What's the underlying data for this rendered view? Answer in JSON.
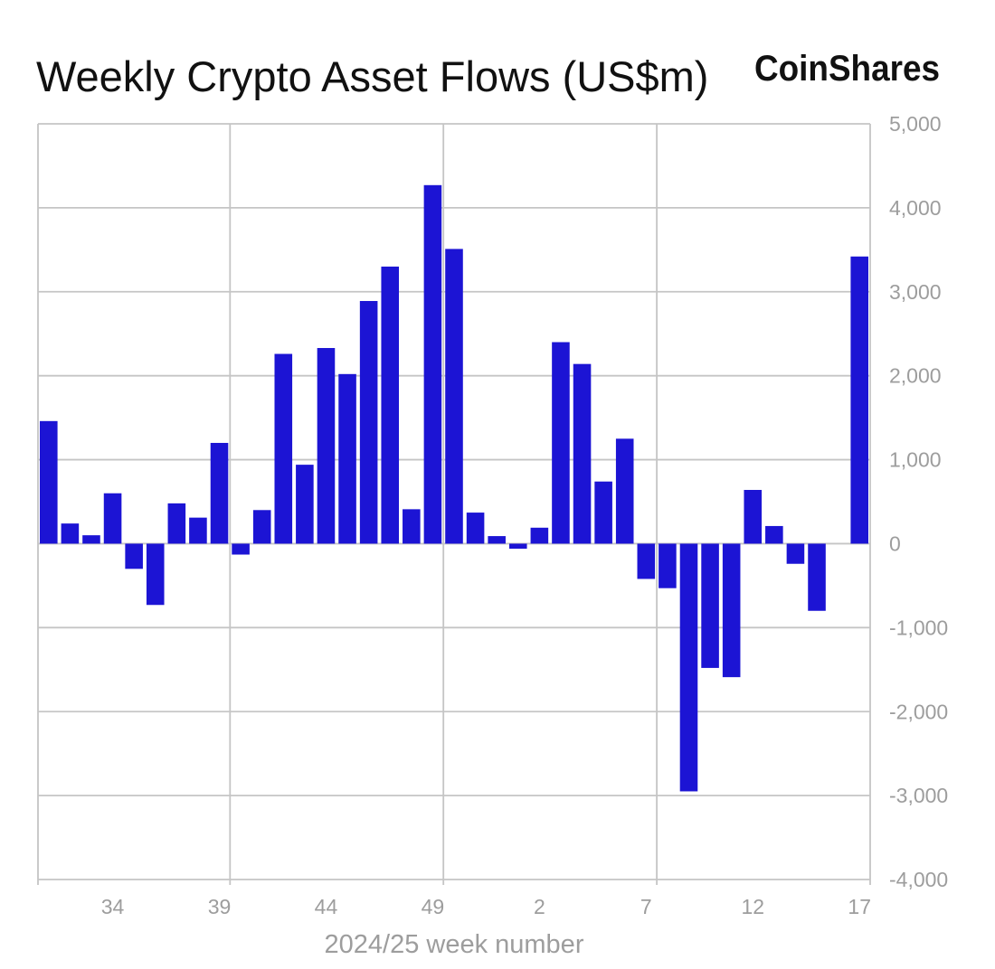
{
  "branding": {
    "logo": "CoinShares"
  },
  "colors": {
    "bar": "#1c14d4",
    "grid": "#c5c5c5",
    "tick_text": "#9d9d9d",
    "text": "#111111"
  },
  "chart_data": {
    "type": "bar",
    "title": "Weekly Crypto Asset Flows (US$m)",
    "xlabel": "2024/25 week number",
    "categories": [
      31,
      32,
      33,
      34,
      35,
      36,
      37,
      38,
      39,
      40,
      41,
      42,
      43,
      44,
      45,
      46,
      47,
      48,
      49,
      50,
      51,
      52,
      1,
      2,
      3,
      4,
      5,
      6,
      7,
      8,
      9,
      10,
      11,
      12,
      13,
      14,
      15,
      16,
      17
    ],
    "values": [
      1460,
      240,
      100,
      600,
      -300,
      -730,
      480,
      310,
      1200,
      -130,
      400,
      2260,
      940,
      2330,
      2020,
      2890,
      3300,
      410,
      4270,
      3510,
      370,
      90,
      -60,
      190,
      2400,
      2140,
      740,
      1250,
      -420,
      -530,
      -2950,
      -1480,
      -1590,
      640,
      210,
      -240,
      -800,
      0,
      3420
    ],
    "ylim": [
      -4000,
      5000
    ],
    "yticks": [
      5000,
      4000,
      3000,
      2000,
      1000,
      0,
      -1000,
      -2000,
      -3000,
      -4000
    ],
    "ytick_labels": [
      "5,000",
      "4,000",
      "3,000",
      "2,000",
      "1,000",
      "0",
      "-1,000",
      "-2,000",
      "-3,000",
      "-4,000"
    ],
    "xticks": [
      34,
      39,
      44,
      49,
      2,
      7,
      12,
      17
    ],
    "y_axis_position": "right",
    "grid": true
  }
}
